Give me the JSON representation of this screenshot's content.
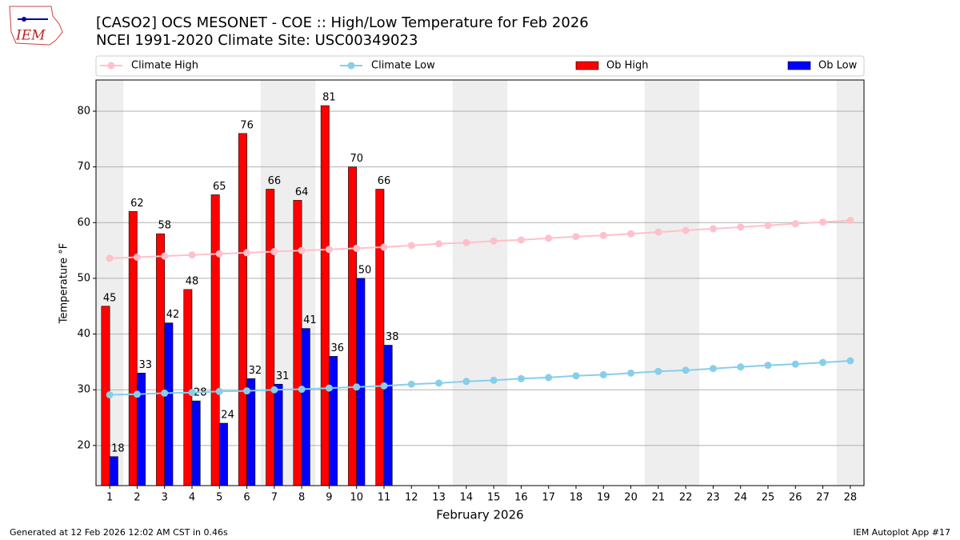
{
  "header": {
    "logo": "IEM"
  },
  "chart_data": {
    "type": "bar-line",
    "title": "[CASO2] OCS MESONET - COE :: High/Low Temperature for Feb 2026",
    "subtitle": "NCEI 1991-2020 Climate Site: USC00349023",
    "xlabel": "February 2026",
    "ylabel": "Temperature °F",
    "categories": [
      1,
      2,
      3,
      4,
      5,
      6,
      7,
      8,
      9,
      10,
      11,
      12,
      13,
      14,
      15,
      16,
      17,
      18,
      19,
      20,
      21,
      22,
      23,
      24,
      25,
      26,
      27,
      28
    ],
    "highlight_days": [
      1,
      7,
      8,
      14,
      15,
      21,
      22,
      28
    ],
    "highlight_color": "#eeeeee",
    "series": [
      {
        "name": "Climate High",
        "kind": "line",
        "color": "#ffc0cb",
        "values": [
          53.6,
          53.8,
          54.0,
          54.2,
          54.4,
          54.6,
          54.8,
          55.0,
          55.2,
          55.4,
          55.6,
          55.9,
          56.2,
          56.4,
          56.7,
          56.9,
          57.2,
          57.5,
          57.7,
          58.0,
          58.3,
          58.6,
          58.9,
          59.2,
          59.5,
          59.8,
          60.1,
          60.4
        ]
      },
      {
        "name": "Climate Low",
        "kind": "line",
        "color": "#87ceeb",
        "values": [
          29.1,
          29.2,
          29.4,
          29.5,
          29.7,
          29.8,
          30.0,
          30.1,
          30.3,
          30.5,
          30.7,
          31.0,
          31.2,
          31.5,
          31.7,
          32.0,
          32.2,
          32.5,
          32.7,
          33.0,
          33.3,
          33.5,
          33.8,
          34.1,
          34.4,
          34.6,
          34.9,
          35.2
        ]
      },
      {
        "name": "Ob High",
        "kind": "bar",
        "color": "#ff0000",
        "values": [
          45,
          62,
          58,
          48,
          65,
          76,
          66,
          64,
          81,
          70,
          66,
          null,
          null,
          null,
          null,
          null,
          null,
          null,
          null,
          null,
          null,
          null,
          null,
          null,
          null,
          null,
          null,
          null
        ]
      },
      {
        "name": "Ob Low",
        "kind": "bar",
        "color": "#0000ff",
        "values": [
          18,
          33,
          42,
          28,
          24,
          32,
          31,
          41,
          36,
          50,
          38,
          null,
          null,
          null,
          null,
          null,
          null,
          null,
          null,
          null,
          null,
          null,
          null,
          null,
          null,
          null,
          null,
          null
        ]
      }
    ],
    "ylim": [
      12.8,
      85.6
    ],
    "yticks": [
      20,
      30,
      40,
      50,
      60,
      70,
      80
    ],
    "grid": true,
    "legend": "top"
  },
  "footer": {
    "left": "Generated at 12 Feb 2026 12:02 AM CST in 0.46s",
    "right": "IEM Autoplot App #17"
  }
}
